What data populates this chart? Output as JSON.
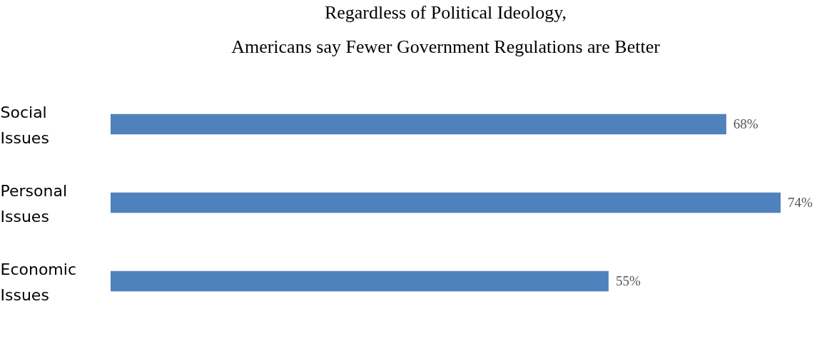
{
  "chart_data": {
    "type": "bar",
    "orientation": "horizontal",
    "title": [
      "Regardless of Political Ideology,",
      "Americans say Fewer Government Regulations are Better"
    ],
    "categories": [
      "Social Issues",
      "Personal Issues",
      "Economic Issues"
    ],
    "values": [
      68,
      74,
      55
    ],
    "value_labels": [
      "68%",
      "74%",
      "55%"
    ],
    "color": "#4f81bd"
  }
}
